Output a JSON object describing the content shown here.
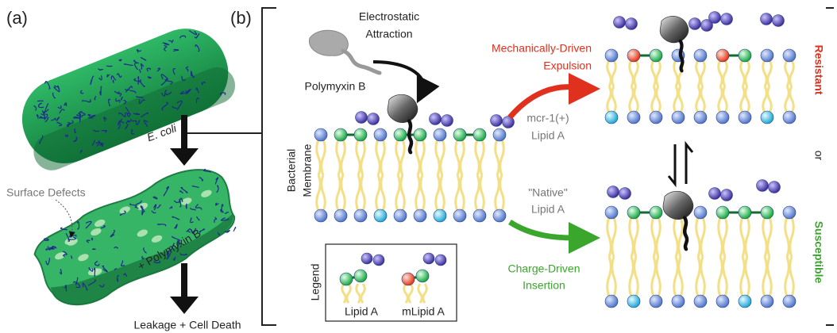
{
  "labels": {
    "panel_a": "(a)",
    "panel_b": "(b)"
  },
  "panel_a": {
    "organism": "E. coli",
    "defects": "Surface Defects",
    "treatment": "+ Polymyxin B",
    "outcome": "Leakage + Cell Death"
  },
  "panel_b": {
    "attraction": [
      "Electrostatic",
      "Attraction"
    ],
    "drug": "Polymyxin B",
    "expulsion": [
      "Mechanically-Driven",
      "Expulsion"
    ],
    "mcr_lipid": [
      "mcr-1(+)",
      "Lipid A"
    ],
    "native_lipid": [
      "\"Native\"",
      "Lipid A"
    ],
    "membrane": [
      "Bacterial",
      "Membrane"
    ],
    "insertion": [
      "Charge-Driven",
      "Insertion"
    ],
    "legend": {
      "title": "Legend",
      "lipid_a": "Lipid A",
      "mlipid_a": "mLipid A"
    }
  },
  "outcomes": {
    "resistant": "Resistant",
    "or": "or",
    "susceptible": "Susceptible"
  }
}
